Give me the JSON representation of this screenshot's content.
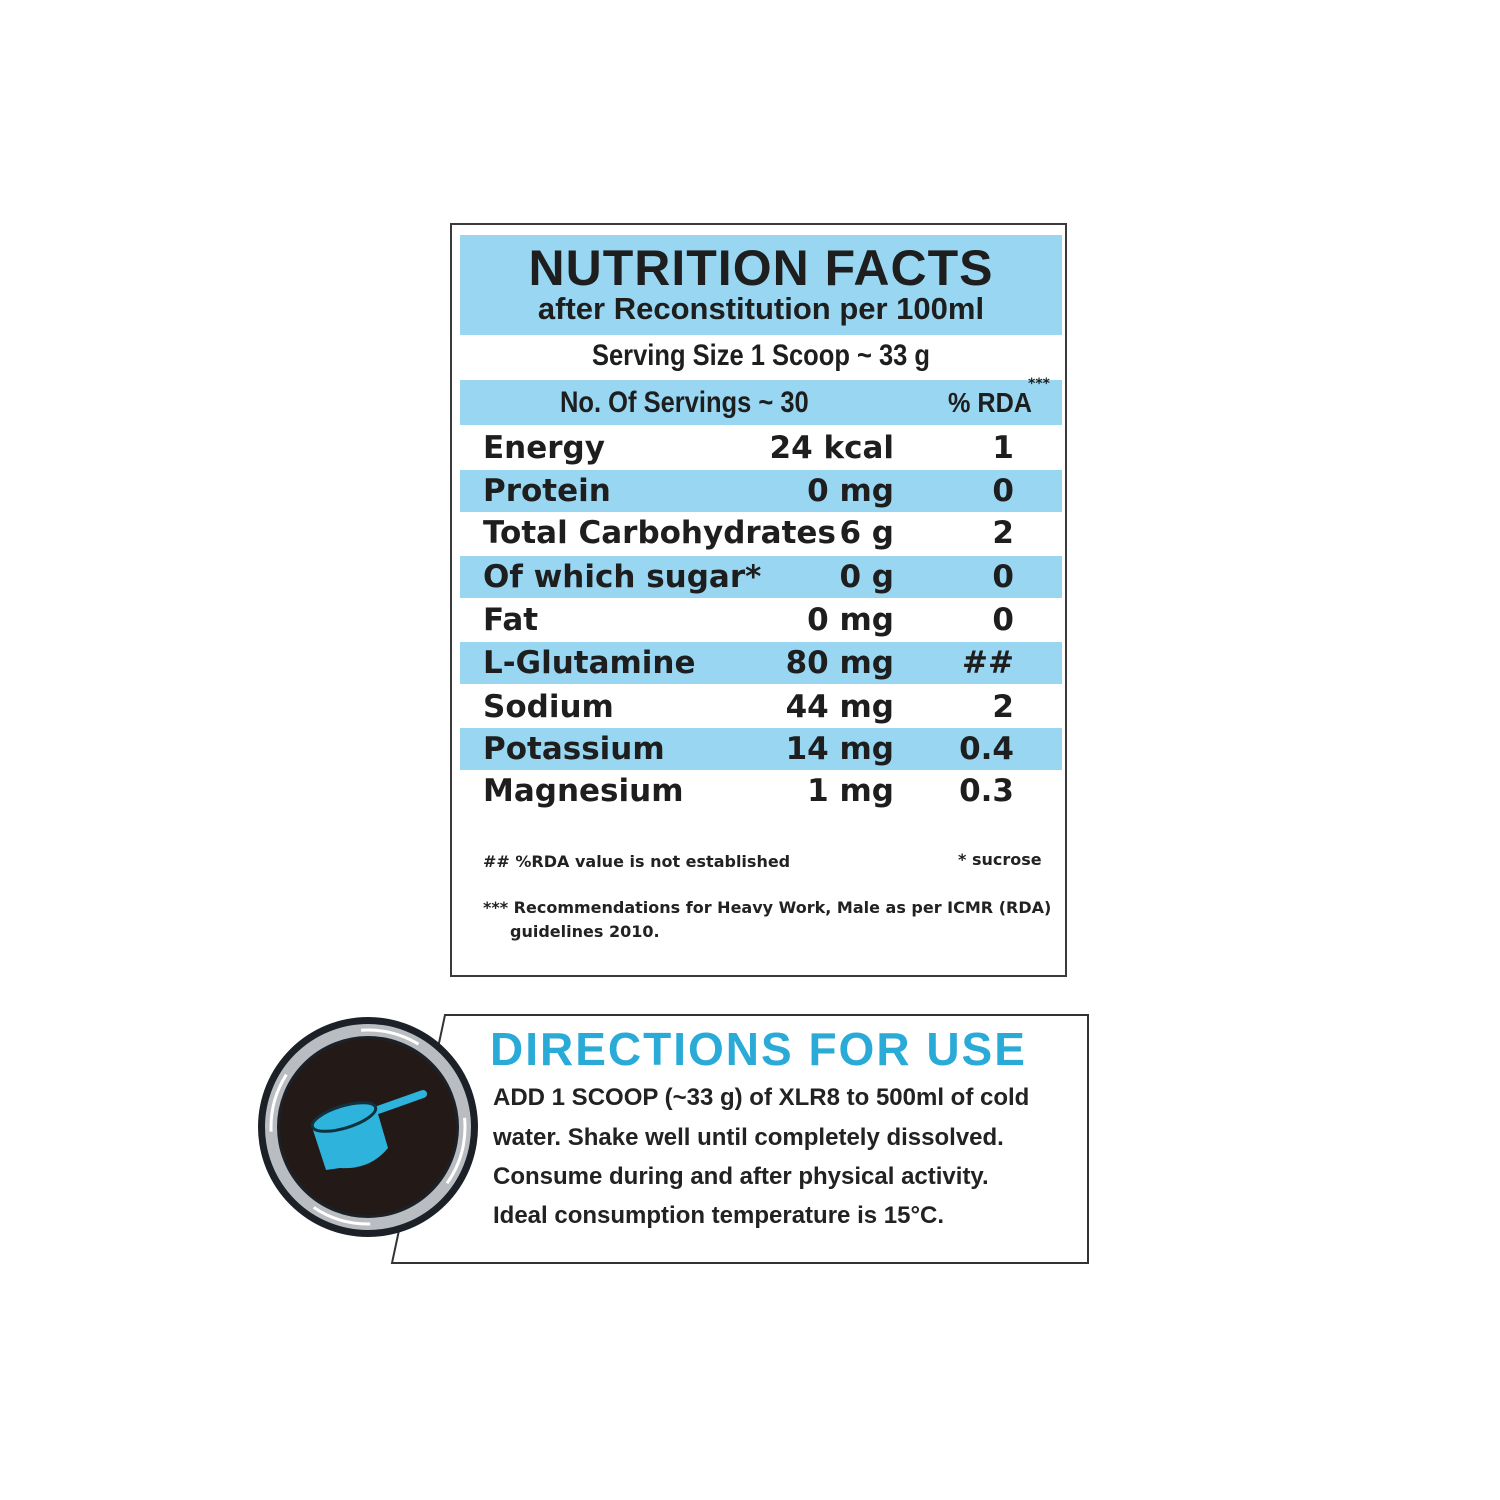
{
  "nutrition": {
    "title": "NUTRITION FACTS",
    "subtitle": "after Reconstitution per 100ml",
    "serving_size": "Serving Size 1 Scoop ~ 33 g",
    "servings_count": "No. Of Servings ~ 30",
    "rda_header": "% RDA",
    "rda_header_mark": "***",
    "band_color": "#98d6f2",
    "rows": [
      {
        "name": "Energy",
        "value": "24 kcal",
        "rda": "1"
      },
      {
        "name": "Protein",
        "value": "0 mg",
        "rda": "0"
      },
      {
        "name": "Total Carbohydrates",
        "value": "6 g",
        "rda": "2"
      },
      {
        "name": "Of which sugar*",
        "value": "0 g",
        "rda": "0"
      },
      {
        "name": "Fat",
        "value": "0 mg",
        "rda": "0"
      },
      {
        "name": "L-Glutamine",
        "value": "80 mg",
        "rda": "##"
      },
      {
        "name": "Sodium",
        "value": "44 mg",
        "rda": "2"
      },
      {
        "name": "Potassium",
        "value": "14 mg",
        "rda": "0.4"
      },
      {
        "name": "Magnesium",
        "value": "1 mg",
        "rda": "0.3"
      }
    ],
    "footnotes": {
      "rda_not_established": "## %RDA value is not established",
      "sucrose": "* sucrose",
      "icmr_line1": "*** Recommendations for Heavy Work, Male as per ICMR (RDA)",
      "icmr_line2": "guidelines 2010."
    }
  },
  "directions": {
    "title": "DIRECTIONS FOR USE",
    "title_color": "#2aaad6",
    "icon": "scoop-icon",
    "lines": [
      "ADD 1 SCOOP (~33 g) of XLR8 to 500ml of cold",
      "water. Shake well until completely dissolved.",
      "Consume during and after physical activity.",
      "Ideal consumption temperature is 15°C."
    ]
  }
}
